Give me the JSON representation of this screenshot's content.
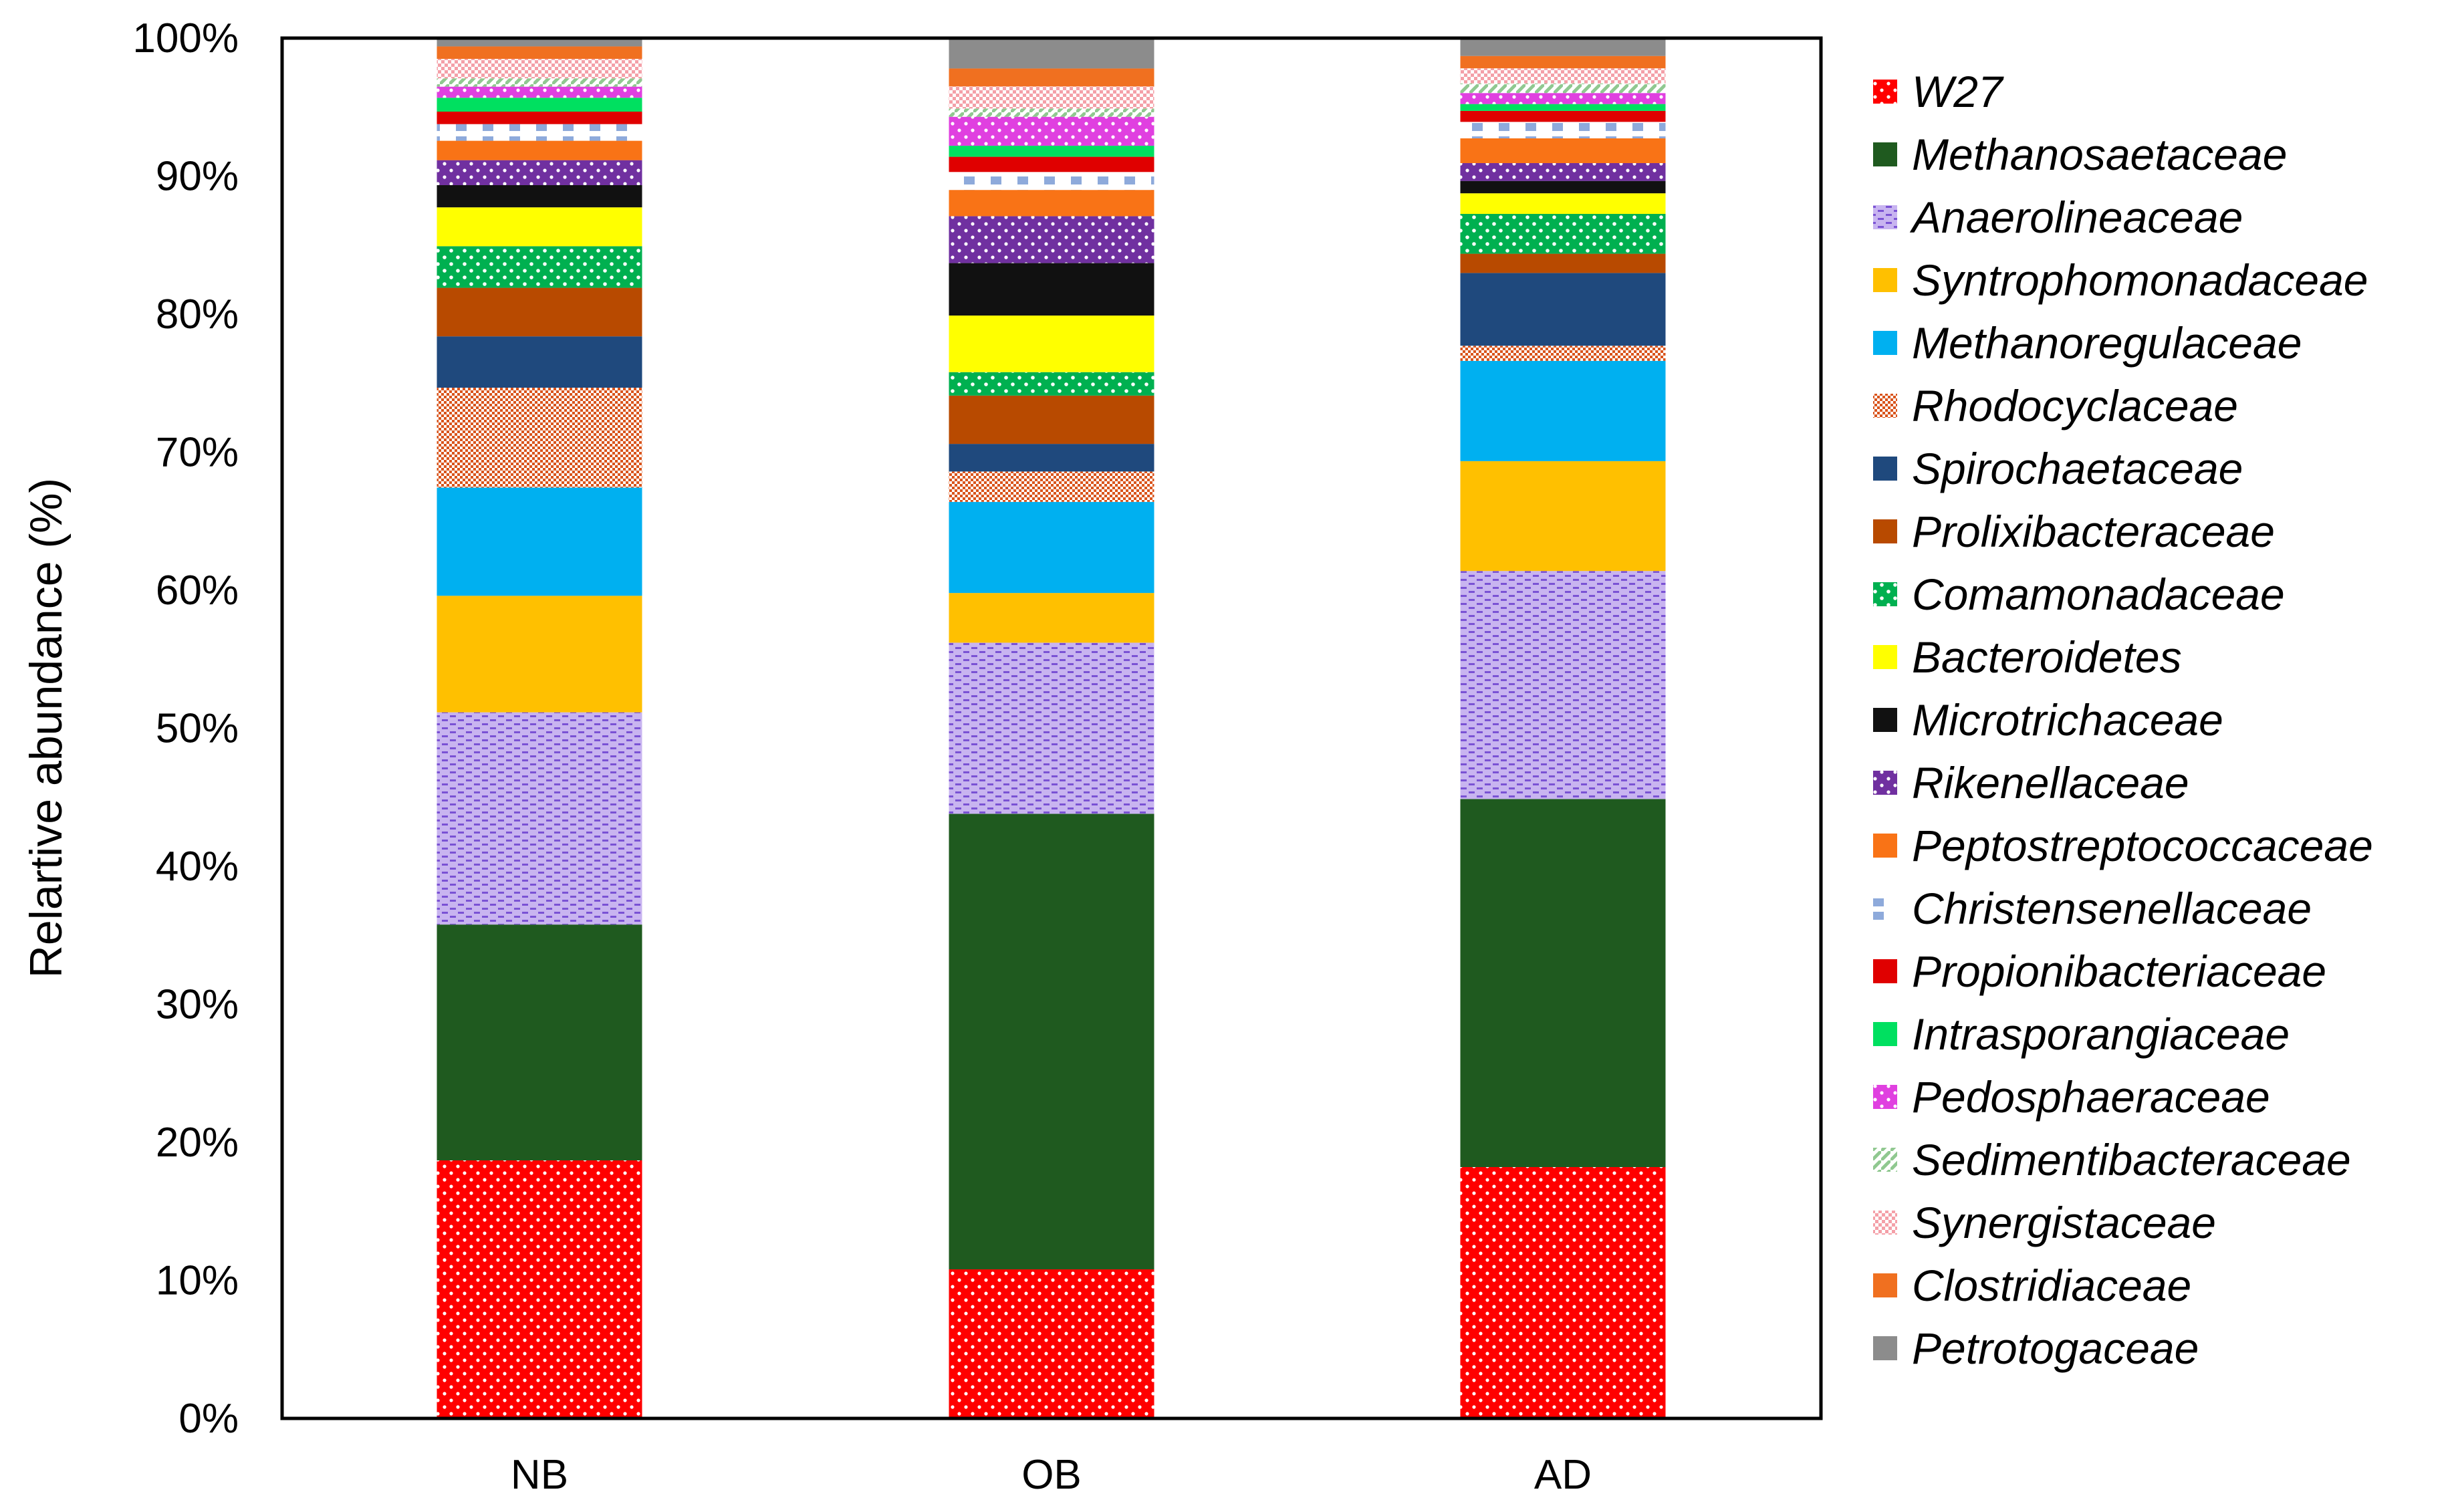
{
  "chart_data": {
    "type": "bar",
    "stacked": true,
    "percent": true,
    "title": "",
    "xlabel": "",
    "ylabel": "Relartive abundance (%)",
    "ylim": [
      0,
      100
    ],
    "yticks": [
      "0%",
      "10%",
      "20%",
      "30%",
      "40%",
      "50%",
      "60%",
      "70%",
      "80%",
      "90%",
      "100%"
    ],
    "categories": [
      "NB",
      "OB",
      "AD"
    ],
    "legend_position": "right",
    "series": [
      {
        "name": "W27",
        "color": "#ff0000",
        "pattern": "dots-white",
        "values": [
          18.6,
          10.8,
          18.3
        ]
      },
      {
        "name": "Methanosaetaceae",
        "color": "#1f5a1f",
        "pattern": "solid",
        "values": [
          17.0,
          33.0,
          26.8
        ]
      },
      {
        "name": "Anaerolineaceae",
        "color": "#c8b4f0",
        "pattern": "dash-purple",
        "values": [
          15.3,
          12.4,
          16.6
        ]
      },
      {
        "name": "Syntrophomonadaceae",
        "color": "#ffc000",
        "pattern": "solid",
        "values": [
          8.4,
          3.6,
          8.0
        ]
      },
      {
        "name": "Methanoregulaceae",
        "color": "#00b0f0",
        "pattern": "solid",
        "values": [
          7.8,
          6.6,
          7.3
        ]
      },
      {
        "name": "Rhodocyclaceae",
        "color": "#f4b183",
        "pattern": "check-orange",
        "values": [
          7.2,
          2.2,
          1.1
        ]
      },
      {
        "name": "Spirochaetaceae",
        "color": "#1f497d",
        "pattern": "solid",
        "values": [
          3.7,
          2.0,
          5.3
        ]
      },
      {
        "name": "Prolixibacteraceae",
        "color": "#b84a00",
        "pattern": "solid",
        "values": [
          3.5,
          3.5,
          1.4
        ]
      },
      {
        "name": "Comamonadaceae",
        "color": "#00b050",
        "pattern": "dots-white",
        "values": [
          3.0,
          1.7,
          2.9
        ]
      },
      {
        "name": "Bacteroidetes",
        "color": "#ffff00",
        "pattern": "solid",
        "values": [
          2.8,
          4.1,
          1.5
        ]
      },
      {
        "name": "Microtrichaceae",
        "color": "#111111",
        "pattern": "solid",
        "values": [
          1.6,
          3.8,
          0.9
        ]
      },
      {
        "name": "Rikenellaceae",
        "color": "#7030a0",
        "pattern": "dots-white",
        "values": [
          1.8,
          3.4,
          1.3
        ]
      },
      {
        "name": "Peptostreptococcaceae",
        "color": "#f97316",
        "pattern": "solid",
        "values": [
          1.4,
          1.9,
          1.8
        ]
      },
      {
        "name": "Christensenellaceae",
        "color": "#ffffff",
        "pattern": "blue-dashes",
        "values": [
          1.2,
          1.3,
          1.2
        ]
      },
      {
        "name": "Propionibacteriaceae",
        "color": "#e00000",
        "pattern": "solid",
        "values": [
          0.9,
          1.1,
          0.8
        ]
      },
      {
        "name": "Intrasporangiaceae",
        "color": "#00e060",
        "pattern": "solid",
        "values": [
          1.0,
          0.8,
          0.5
        ]
      },
      {
        "name": "Pedosphaeraceae",
        "color": "#e040e0",
        "pattern": "dots-white",
        "values": [
          0.8,
          2.1,
          0.8
        ]
      },
      {
        "name": "Sedimentibacteraceae",
        "color": "#a8d8a8",
        "pattern": "diag-green",
        "values": [
          0.6,
          0.6,
          0.7
        ]
      },
      {
        "name": "Synergistaceae",
        "color": "#ffd0d0",
        "pattern": "check-pink",
        "values": [
          1.4,
          1.6,
          1.1
        ]
      },
      {
        "name": "Clostridiaceae",
        "color": "#f07020",
        "pattern": "solid",
        "values": [
          0.9,
          1.3,
          0.9
        ]
      },
      {
        "name": "Petrotogaceae",
        "color": "#8c8c8c",
        "pattern": "solid",
        "values": [
          0.6,
          2.2,
          1.3
        ]
      }
    ]
  }
}
